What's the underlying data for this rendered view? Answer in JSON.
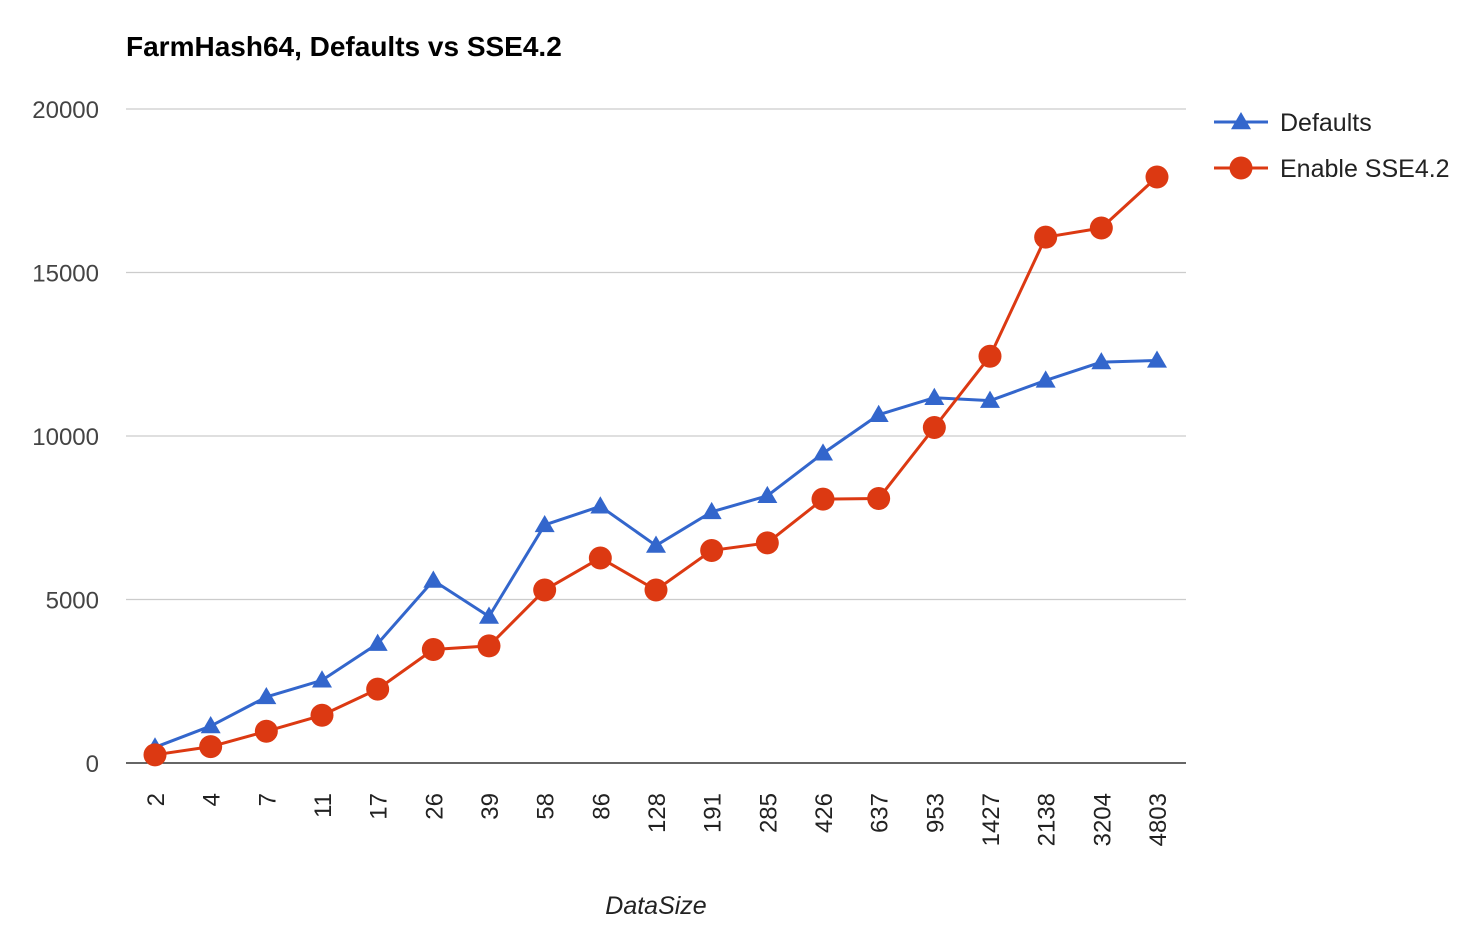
{
  "chart_data": {
    "type": "line",
    "title": "FarmHash64, Defaults vs SSE4.2",
    "xlabel": "DataSize",
    "ylabel": "",
    "categories": [
      "2",
      "4",
      "7",
      "11",
      "17",
      "26",
      "39",
      "58",
      "86",
      "128",
      "191",
      "285",
      "426",
      "637",
      "953",
      "1427",
      "2138",
      "3204",
      "4803"
    ],
    "ylim": [
      0,
      20000
    ],
    "yticks": [
      "0",
      "5000",
      "10000",
      "15000",
      "20000"
    ],
    "grid": true,
    "legend_position": "right",
    "series": [
      {
        "name": "Defaults",
        "color": "#3366cc",
        "marker": "triangle",
        "values": [
          480,
          1130,
          2020,
          2530,
          3650,
          5580,
          4480,
          7280,
          7850,
          6650,
          7680,
          8170,
          9470,
          10650,
          11170,
          11080,
          11700,
          12260,
          12310
        ]
      },
      {
        "name": "Enable SSE4.2",
        "color": "#dc3912",
        "marker": "circle",
        "values": [
          250,
          500,
          970,
          1460,
          2260,
          3470,
          3580,
          5290,
          6270,
          5290,
          6500,
          6730,
          8070,
          8090,
          10260,
          12440,
          16080,
          16360,
          17920
        ]
      }
    ]
  }
}
